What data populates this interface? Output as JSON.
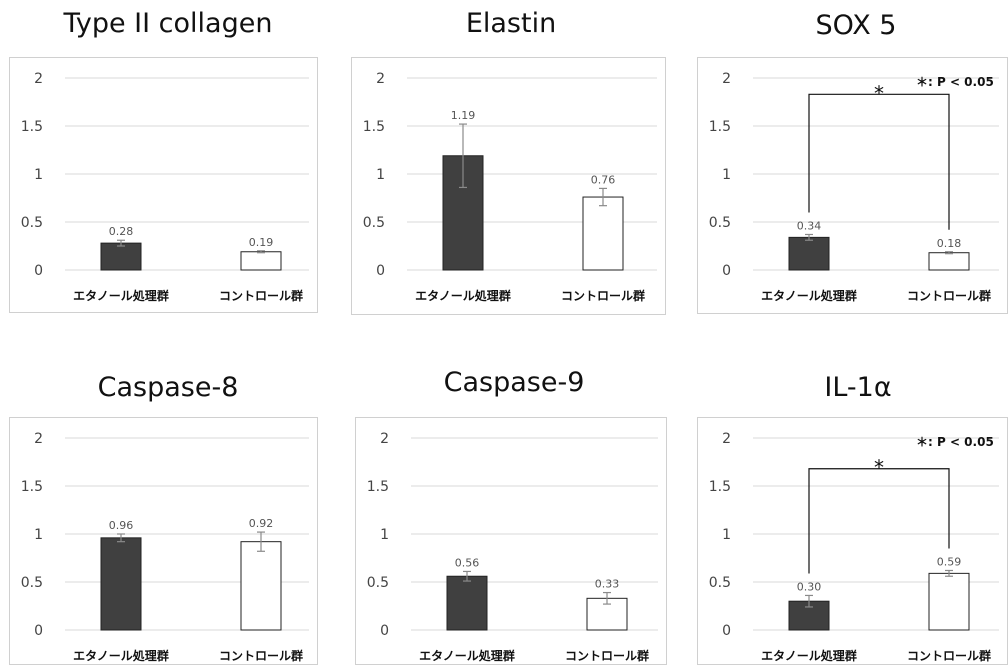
{
  "chart_data": [
    {
      "type": "bar",
      "title": "Type II collagen",
      "categories": [
        "エタノール処理群",
        "コントロール群"
      ],
      "values": [
        0.28,
        0.19
      ],
      "errors": [
        0.03,
        0.01
      ],
      "data_labels": [
        "0.28",
        "0.19"
      ],
      "ylim": [
        0,
        2
      ],
      "yticks": [
        "0",
        "0.5",
        "1",
        "1.5",
        "2"
      ],
      "bar_colors": [
        "#404040",
        "#ffffff"
      ],
      "grid": true
    },
    {
      "type": "bar",
      "title": "Elastin",
      "categories": [
        "エタノール処理群",
        "コントロール群"
      ],
      "values": [
        1.19,
        0.76
      ],
      "errors": [
        0.33,
        0.09
      ],
      "data_labels": [
        "1.19",
        "0.76"
      ],
      "ylim": [
        0,
        2
      ],
      "yticks": [
        "0",
        "0.5",
        "1",
        "1.5",
        "2"
      ],
      "bar_colors": [
        "#404040",
        "#ffffff"
      ],
      "grid": true
    },
    {
      "type": "bar",
      "title": "SOX 5",
      "categories": [
        "エタノール処理群",
        "コントロール群"
      ],
      "values": [
        0.34,
        0.18
      ],
      "errors": [
        0.03,
        0.01
      ],
      "data_labels": [
        "0.34",
        "0.18"
      ],
      "ylim": [
        0,
        2
      ],
      "yticks": [
        "0",
        "0.5",
        "1",
        "1.5",
        "2"
      ],
      "bar_colors": [
        "#404040",
        "#ffffff"
      ],
      "grid": true,
      "significance": {
        "marker": "*",
        "bracket_level": 1.83
      },
      "legend_note": "＊: P < 0.05"
    },
    {
      "type": "bar",
      "title": "Caspase-8",
      "categories": [
        "エタノール処理群",
        "コントロール群"
      ],
      "values": [
        0.96,
        0.92
      ],
      "errors": [
        0.04,
        0.1
      ],
      "data_labels": [
        "0.96",
        "0.92"
      ],
      "ylim": [
        0,
        2
      ],
      "yticks": [
        "0",
        "0.5",
        "1",
        "1.5",
        "2"
      ],
      "bar_colors": [
        "#404040",
        "#ffffff"
      ],
      "grid": true
    },
    {
      "type": "bar",
      "title": "Caspase-9",
      "categories": [
        "エタノール処理群",
        "コントロール群"
      ],
      "values": [
        0.56,
        0.33
      ],
      "errors": [
        0.05,
        0.06
      ],
      "data_labels": [
        "0.56",
        "0.33"
      ],
      "ylim": [
        0,
        2
      ],
      "yticks": [
        "0",
        "0.5",
        "1",
        "1.5",
        "2"
      ],
      "bar_colors": [
        "#404040",
        "#ffffff"
      ],
      "grid": true
    },
    {
      "type": "bar",
      "title": "IL-1α",
      "categories": [
        "エタノール処理群",
        "コントロール群"
      ],
      "values": [
        0.3,
        0.59
      ],
      "errors": [
        0.06,
        0.03
      ],
      "data_labels": [
        "0.30",
        "0.59"
      ],
      "ylim": [
        0,
        2
      ],
      "yticks": [
        "0",
        "0.5",
        "1",
        "1.5",
        "2"
      ],
      "bar_colors": [
        "#404040",
        "#ffffff"
      ],
      "grid": true,
      "significance": {
        "marker": "*",
        "bracket_level": 1.68
      },
      "legend_note": "＊: P < 0.05"
    }
  ]
}
